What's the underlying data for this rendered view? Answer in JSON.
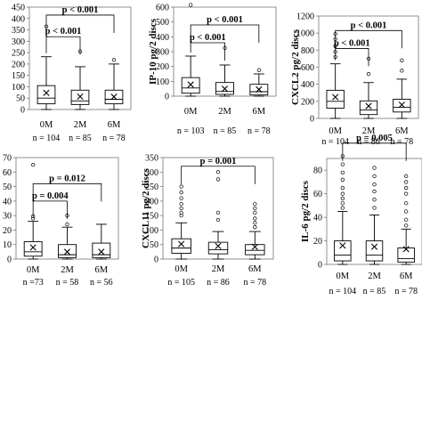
{
  "chart_data": [
    {
      "type": "box",
      "ylabel": "",
      "ylim": [
        0,
        450
      ],
      "ytick_labels": [
        "0",
        "50",
        "100",
        "150",
        "200",
        "250",
        "300",
        "350",
        "400",
        "450"
      ],
      "categories": [
        "0M",
        "2M",
        "6M"
      ],
      "n_labels": [
        "n = 104",
        "n = 85",
        "n = 78"
      ],
      "boxes": [
        {
          "whisker_low": 0,
          "q1": 25,
          "median": 50,
          "q3": 105,
          "whisker_high": 232,
          "mean": 73,
          "outliers": [
            365
          ]
        },
        {
          "whisker_low": 0,
          "q1": 22,
          "median": 38,
          "q3": 85,
          "whisker_high": 188,
          "mean": 57,
          "outliers": [
            255
          ]
        },
        {
          "whisker_low": 0,
          "q1": 25,
          "median": 45,
          "q3": 85,
          "whisker_high": 200,
          "mean": 56,
          "outliers": [
            218
          ]
        }
      ],
      "significance": [
        {
          "from": 0,
          "to": 1,
          "label": "p < 0.001",
          "y": 320
        },
        {
          "from": 0,
          "to": 2,
          "label": "p < 0.001",
          "y": 415
        }
      ]
    },
    {
      "type": "box",
      "ylabel": "IP-10 pg/2 discs",
      "ylim": [
        0,
        600
      ],
      "ytick_labels": [
        "0",
        "100",
        "200",
        "300",
        "400",
        "500",
        "600"
      ],
      "categories": [
        "0M",
        "2M",
        "6M"
      ],
      "n_labels": [
        "n = 103",
        "n = 85",
        "n = 78"
      ],
      "boxes": [
        {
          "whisker_low": 0,
          "q1": 20,
          "median": 55,
          "q3": 125,
          "whisker_high": 270,
          "mean": 78,
          "outliers": [
            615
          ]
        },
        {
          "whisker_low": 0,
          "q1": 12,
          "median": 32,
          "q3": 92,
          "whisker_high": 210,
          "mean": 50,
          "outliers": [
            325
          ]
        },
        {
          "whisker_low": 0,
          "q1": 8,
          "median": 30,
          "q3": 80,
          "whisker_high": 150,
          "mean": 45,
          "outliers": [
            175
          ]
        }
      ],
      "significance": [
        {
          "from": 0,
          "to": 1,
          "label": "p < 0.001",
          "y": 360
        },
        {
          "from": 0,
          "to": 2,
          "label": "p < 0.001",
          "y": 480
        }
      ]
    },
    {
      "type": "box",
      "ylabel": "CXCL2 pg/2 discs",
      "ylim": [
        0,
        1200
      ],
      "ytick_labels": [
        "0",
        "200",
        "400",
        "600",
        "800",
        "1000",
        "1200"
      ],
      "categories": [
        "0M",
        "2M",
        "6M"
      ],
      "n_labels": [
        "n = 104",
        "n = 86",
        "n = 78"
      ],
      "boxes": [
        {
          "whisker_low": 0,
          "q1": 120,
          "median": 200,
          "q3": 330,
          "whisker_high": 640,
          "mean": 250,
          "outliers": [
            720,
            780,
            850,
            930,
            990
          ]
        },
        {
          "whisker_low": 0,
          "q1": 45,
          "median": 100,
          "q3": 205,
          "whisker_high": 420,
          "mean": 145,
          "outliers": [
            520,
            700
          ]
        },
        {
          "whisker_low": 0,
          "q1": 75,
          "median": 130,
          "q3": 225,
          "whisker_high": 460,
          "mean": 160,
          "outliers": [
            560,
            680
          ]
        }
      ],
      "significance": [
        {
          "from": 0,
          "to": 1,
          "label": "p < 0.001",
          "y": 820
        },
        {
          "from": 0,
          "to": 2,
          "label": "p < 0.001",
          "y": 1030
        }
      ]
    },
    {
      "type": "box",
      "ylabel": "",
      "ylim": [
        0,
        70
      ],
      "ytick_labels": [
        "0",
        "10",
        "20",
        "30",
        "40",
        "50",
        "60",
        "70"
      ],
      "categories": [
        "0M",
        "2M",
        "6M"
      ],
      "n_labels": [
        "n =73",
        "n = 58",
        "n = 56"
      ],
      "boxes": [
        {
          "whisker_low": 0,
          "q1": 2,
          "median": 5,
          "q3": 12,
          "whisker_high": 26,
          "mean": 8,
          "outliers": [
            28,
            29.5,
            65
          ]
        },
        {
          "whisker_low": 0,
          "q1": 1,
          "median": 3,
          "q3": 10,
          "whisker_high": 22,
          "mean": 5,
          "outliers": [
            24,
            30
          ]
        },
        {
          "whisker_low": 0,
          "q1": 1,
          "median": 3,
          "q3": 11,
          "whisker_high": 24,
          "mean": 5,
          "outliers": []
        }
      ],
      "significance": [
        {
          "from": 0,
          "to": 1,
          "label": "p = 0.004",
          "y": 40
        },
        {
          "from": 0,
          "to": 2,
          "label": "p = 0.012",
          "y": 52
        }
      ]
    },
    {
      "type": "box",
      "ylabel": "CXCL11 pg/2 discs",
      "ylim": [
        0,
        350
      ],
      "ytick_labels": [
        "0",
        "50",
        "100",
        "150",
        "200",
        "250",
        "300",
        "350"
      ],
      "categories": [
        "0M",
        "2M",
        "6M"
      ],
      "n_labels": [
        "n = 105",
        "n =  86",
        "n = 78"
      ],
      "boxes": [
        {
          "whisker_low": 0,
          "q1": 20,
          "median": 38,
          "q3": 70,
          "whisker_high": 125,
          "mean": 52,
          "outliers": [
            150,
            160,
            175,
            190,
            210,
            230,
            250
          ]
        },
        {
          "whisker_low": 0,
          "q1": 18,
          "median": 32,
          "q3": 58,
          "whisker_high": 95,
          "mean": 45,
          "outliers": [
            135,
            160,
            275,
            300
          ]
        },
        {
          "whisker_low": 0,
          "q1": 15,
          "median": 30,
          "q3": 50,
          "whisker_high": 95,
          "mean": 42,
          "outliers": [
            110,
            125,
            140,
            160,
            175,
            190
          ]
        }
      ],
      "significance": [
        {
          "from": 0,
          "to": 2,
          "label": "p = 0.001",
          "y": 320
        }
      ]
    },
    {
      "type": "box",
      "ylabel": "IL-6 pg/2 discs",
      "ylim": [
        0,
        90
      ],
      "ytick_labels": [
        "0",
        "20",
        "40",
        "60",
        "80"
      ],
      "categories": [
        "0M",
        "2M",
        "6M"
      ],
      "n_labels": [
        "n = 104",
        "n = 85",
        "n = 78"
      ],
      "boxes": [
        {
          "whisker_low": 0,
          "q1": 3,
          "median": 8,
          "q3": 20,
          "whisker_high": 45,
          "mean": 16,
          "outliers": [
            48,
            52,
            56,
            60,
            65,
            72,
            78,
            85,
            92
          ]
        },
        {
          "whisker_low": 0,
          "q1": 3,
          "median": 8,
          "q3": 20,
          "whisker_high": 42,
          "mean": 15,
          "outliers": [
            48,
            55,
            62,
            68,
            75,
            82
          ]
        },
        {
          "whisker_low": 0,
          "q1": 2,
          "median": 5,
          "q3": 14,
          "whisker_high": 30,
          "mean": 13,
          "outliers": [
            33,
            38,
            45,
            52,
            60,
            65,
            70,
            75
          ]
        }
      ],
      "significance": [
        {
          "from": 0,
          "to": 2,
          "label": "p = 0.005",
          "y": 103
        }
      ]
    }
  ]
}
